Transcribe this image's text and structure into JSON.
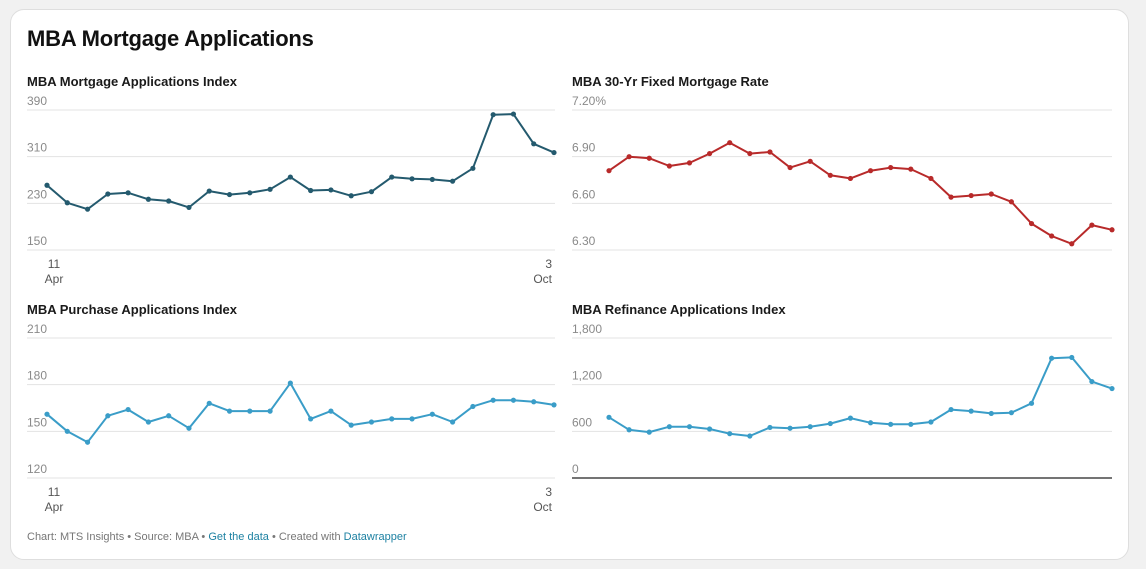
{
  "title": "MBA Mortgage Applications",
  "footer": {
    "chart_text": "Chart: MTS Insights",
    "sep1": " • ",
    "source_text": "Source: MBA",
    "sep2": " • ",
    "data_link": "Get the data",
    "sep3": " • ",
    "created_text": "Created with ",
    "tool_link": "Datawrapper"
  },
  "chart_data": [
    {
      "type": "line",
      "title": "MBA Mortgage Applications Index",
      "color": "#245a6e",
      "yticks": [
        "390",
        "310",
        "230",
        "150"
      ],
      "ylim": [
        150,
        390
      ],
      "xlabels": [
        [
          "11",
          "Apr"
        ],
        [
          "3",
          "Oct"
        ]
      ],
      "values": [
        261,
        231,
        220,
        246,
        248,
        237,
        234,
        223,
        251,
        245,
        248,
        254,
        275,
        252,
        253,
        243,
        250,
        275,
        272,
        271,
        268,
        290,
        382,
        383,
        332,
        317
      ]
    },
    {
      "type": "line",
      "title": "MBA 30-Yr Fixed Mortgage Rate",
      "color": "#b82a2a",
      "yticks": [
        "7.20%",
        "6.90",
        "6.60",
        "6.30"
      ],
      "ylim": [
        6.3,
        7.2
      ],
      "xlabels": [],
      "values": [
        6.81,
        6.9,
        6.89,
        6.84,
        6.86,
        6.92,
        6.99,
        6.92,
        6.93,
        6.83,
        6.87,
        6.78,
        6.76,
        6.81,
        6.83,
        6.82,
        6.76,
        6.64,
        6.65,
        6.66,
        6.61,
        6.47,
        6.39,
        6.34,
        6.46,
        6.43
      ]
    },
    {
      "type": "line",
      "title": "MBA Purchase Applications Index",
      "color": "#3a9dc8",
      "yticks": [
        "210",
        "180",
        "150",
        "120"
      ],
      "ylim": [
        120,
        210
      ],
      "xlabels": [
        [
          "11",
          "Apr"
        ],
        [
          "3",
          "Oct"
        ]
      ],
      "values": [
        161,
        150,
        143,
        160,
        164,
        156,
        160,
        152,
        168,
        163,
        163,
        163,
        181,
        158,
        163,
        154,
        156,
        158,
        158,
        161,
        156,
        166,
        170,
        170,
        169,
        167
      ]
    },
    {
      "type": "line",
      "title": "MBA Refinance Applications Index",
      "color": "#3a9dc8",
      "yticks": [
        "1,800",
        "1,200",
        "600",
        "0"
      ],
      "ylim": [
        0,
        1800
      ],
      "xlabels": [],
      "values": [
        780,
        620,
        590,
        660,
        660,
        630,
        570,
        540,
        650,
        640,
        660,
        700,
        770,
        710,
        690,
        690,
        720,
        880,
        860,
        830,
        840,
        960,
        1540,
        1550,
        1240,
        1150
      ]
    }
  ]
}
